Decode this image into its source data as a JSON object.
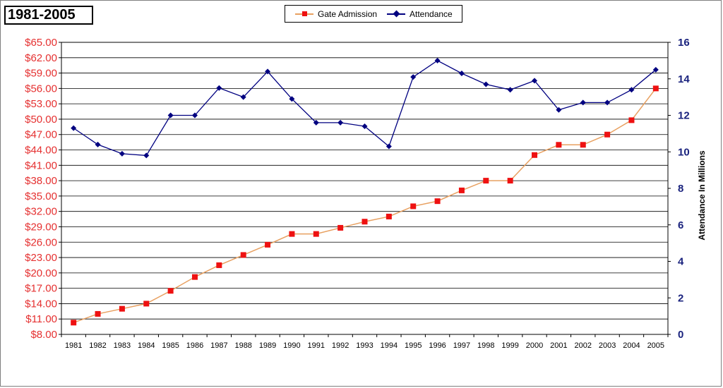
{
  "chart_data": {
    "type": "line",
    "title": "1981-2005",
    "x": [
      "1981",
      "1982",
      "1983",
      "1984",
      "1985",
      "1986",
      "1987",
      "1988",
      "1989",
      "1990",
      "1991",
      "1992",
      "1993",
      "1994",
      "1995",
      "1996",
      "1997",
      "1998",
      "1999",
      "2000",
      "2001",
      "2002",
      "2003",
      "2004",
      "2005"
    ],
    "left_axis_ticks": [
      "$8.00",
      "$11.00",
      "$14.00",
      "$17.00",
      "$20.00",
      "$23.00",
      "$26.00",
      "$29.00",
      "$32.00",
      "$35.00",
      "$38.00",
      "$41.00",
      "$44.00",
      "$47.00",
      "$50.00",
      "$53.00",
      "$56.00",
      "$59.00",
      "$62.00",
      "$65.00"
    ],
    "right_axis_ticks": [
      "0",
      "2",
      "4",
      "6",
      "8",
      "10",
      "12",
      "14",
      "16"
    ],
    "xlabel": "",
    "ylabel_left": "",
    "ylabel_right": "Attendance In Millions",
    "ylim_right": [
      0,
      16
    ],
    "grid": true,
    "legend_position": "top-center",
    "series": [
      {
        "name": "Gate Admission",
        "axis": "left",
        "color": "#e8a060",
        "marker_color": "#ee1111",
        "marker": "square",
        "values": [
          10.3,
          12.0,
          13.0,
          14.0,
          16.5,
          19.2,
          21.5,
          23.5,
          25.5,
          27.6,
          27.6,
          28.8,
          30.0,
          31.0,
          33.0,
          34.0,
          36.1,
          38.0,
          38.0,
          43.0,
          45.0,
          45.0,
          47.0,
          49.8,
          56.0
        ]
      },
      {
        "name": "Attendance",
        "axis": "right",
        "color": "#000080",
        "marker_color": "#000080",
        "marker": "diamond",
        "values": [
          11.3,
          10.4,
          9.9,
          9.8,
          12.0,
          12.0,
          13.5,
          13.0,
          14.4,
          12.9,
          11.6,
          11.6,
          11.4,
          10.3,
          14.1,
          15.0,
          14.3,
          13.7,
          13.4,
          13.9,
          12.3,
          12.7,
          12.7,
          13.4,
          14.5
        ]
      }
    ]
  }
}
